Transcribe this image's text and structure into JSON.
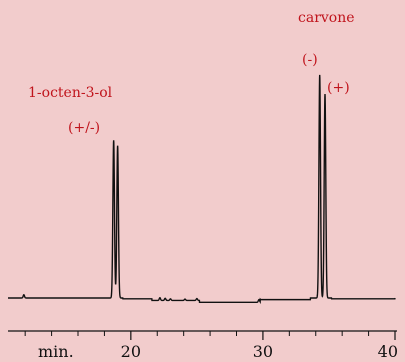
{
  "chart_data": {
    "type": "line",
    "title": "",
    "xlabel": "min.",
    "ylabel": "",
    "xlim": [
      10.7,
      40
    ],
    "x_ticks": [
      20,
      30,
      40
    ],
    "x_tick_labels": [
      "20",
      "30",
      "40"
    ],
    "x_minor_ticks": [
      12,
      14,
      16,
      18,
      22,
      24,
      26,
      28,
      32,
      34,
      36,
      38
    ],
    "grid": false,
    "legend": "none",
    "colors": {
      "background": "#f2cccc",
      "trace": "#111111",
      "annotation": "#c0141c"
    },
    "annotations": [
      {
        "id": "octenol-name",
        "text": "1-octen-3-ol"
      },
      {
        "id": "octenol-enantiomers",
        "text": "(+/-)"
      },
      {
        "id": "carvone-name",
        "text": "carvone"
      },
      {
        "id": "carvone-minus",
        "text": "(-)"
      },
      {
        "id": "carvone-plus",
        "text": "(+)"
      }
    ],
    "series": [
      {
        "baseline_segments": [
          {
            "x": [
              10.7,
              18.4
            ],
            "y": 0.0
          },
          {
            "x": [
              19.4,
              21.6
            ],
            "y": -0.3
          },
          {
            "x": [
              21.6,
              25.2
            ],
            "y": -0.9
          },
          {
            "x": [
              25.2,
              29.8
            ],
            "y": -1.6
          },
          {
            "x": [
              29.8,
              33.6
            ],
            "y": -0.6
          },
          {
            "x": [
              35.2,
              40.0
            ],
            "y": -0.3
          }
        ],
        "peaks": [
          {
            "x": 11.9,
            "height": 1.2,
            "width": 0.05
          },
          {
            "x": 18.7,
            "height": 58.0,
            "width": 0.06
          },
          {
            "x": 19.0,
            "height": 56.0,
            "width": 0.06
          },
          {
            "x": 22.2,
            "height": 1.0,
            "width": 0.05
          },
          {
            "x": 22.6,
            "height": 0.8,
            "width": 0.05
          },
          {
            "x": 23.0,
            "height": 0.6,
            "width": 0.05
          },
          {
            "x": 24.1,
            "height": 0.5,
            "width": 0.05
          },
          {
            "x": 25.0,
            "height": 0.7,
            "width": 0.05
          },
          {
            "x": 29.7,
            "height": 1.0,
            "width": 0.05
          },
          {
            "x": 34.3,
            "height": 82.0,
            "width": 0.06
          },
          {
            "x": 34.7,
            "height": 75.0,
            "width": 0.06
          }
        ]
      }
    ]
  }
}
